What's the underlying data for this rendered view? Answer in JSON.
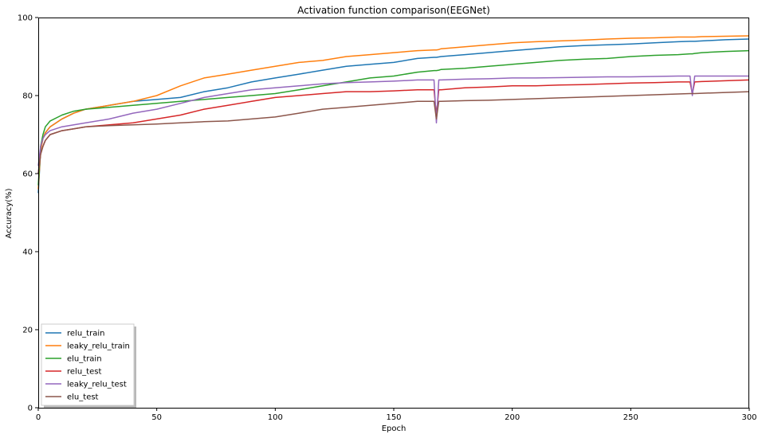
{
  "chart_data": {
    "type": "line",
    "title": "Activation function comparison(EEGNet)",
    "xlabel": "Epoch",
    "ylabel": "Accuracy(%)",
    "xlim": [
      0,
      300
    ],
    "ylim": [
      0,
      100
    ],
    "xticks": [
      0,
      50,
      100,
      150,
      200,
      250,
      300
    ],
    "yticks": [
      0,
      20,
      40,
      60,
      80,
      100
    ],
    "grid": false,
    "legend_position": "lower-left",
    "x": [
      0,
      1,
      2,
      3,
      5,
      10,
      15,
      20,
      30,
      40,
      50,
      60,
      70,
      80,
      90,
      100,
      110,
      120,
      130,
      140,
      150,
      160,
      167,
      168,
      169,
      170,
      180,
      190,
      200,
      210,
      220,
      230,
      240,
      250,
      260,
      270,
      275,
      276,
      277,
      280,
      290,
      300
    ],
    "series": [
      {
        "name": "relu_train",
        "color": "#1f77b4",
        "values": [
          55,
          66,
          69,
          70.5,
          72,
          74,
          75.5,
          76.5,
          77.5,
          78.5,
          79,
          79.5,
          81,
          82,
          83.5,
          84.5,
          85.5,
          86.5,
          87.5,
          88,
          88.5,
          89.5,
          89.8,
          89.8,
          89.9,
          90,
          90.5,
          91,
          91.5,
          92,
          92.5,
          92.8,
          93,
          93.2,
          93.5,
          93.8,
          93.9,
          93.9,
          93.9,
          94,
          94.3,
          94.5
        ]
      },
      {
        "name": "leaky_relu_train",
        "color": "#ff7f0e",
        "values": [
          56,
          66,
          69,
          70.5,
          72,
          74,
          75.5,
          76.5,
          77.5,
          78.5,
          80,
          82.5,
          84.5,
          85.5,
          86.5,
          87.5,
          88.5,
          89,
          90,
          90.5,
          91,
          91.5,
          91.7,
          91.7,
          91.8,
          92,
          92.5,
          93,
          93.5,
          93.8,
          94,
          94.2,
          94.5,
          94.7,
          94.8,
          95,
          95,
          95,
          95,
          95.1,
          95.2,
          95.3
        ]
      },
      {
        "name": "elu_train",
        "color": "#2ca02c",
        "values": [
          57,
          67,
          70,
          72,
          73.5,
          75,
          76,
          76.5,
          77,
          77.5,
          78,
          78.5,
          79,
          79.5,
          80,
          80.5,
          81.5,
          82.5,
          83.5,
          84.5,
          85,
          86,
          86.4,
          86.4,
          86.5,
          86.7,
          87,
          87.5,
          88,
          88.5,
          89,
          89.3,
          89.5,
          90,
          90.3,
          90.5,
          90.7,
          90.7,
          90.8,
          91,
          91.3,
          91.5
        ]
      },
      {
        "name": "relu_test",
        "color": "#d62728",
        "values": [
          60,
          65,
          67,
          68.5,
          70,
          71,
          71.5,
          72,
          72.5,
          73,
          74,
          75,
          76.5,
          77.5,
          78.5,
          79.5,
          80,
          80.5,
          81,
          81,
          81.2,
          81.5,
          81.5,
          75,
          81.5,
          81.5,
          82,
          82.2,
          82.5,
          82.5,
          82.7,
          82.8,
          83,
          83.2,
          83.3,
          83.5,
          83.5,
          80.5,
          83.5,
          83.6,
          83.8,
          84
        ]
      },
      {
        "name": "leaky_relu_test",
        "color": "#9467bd",
        "values": [
          62,
          67,
          69,
          70,
          71,
          72,
          72.5,
          73,
          74,
          75.5,
          76.5,
          78,
          79.5,
          80.5,
          81.5,
          82,
          82.5,
          83,
          83.3,
          83.5,
          83.7,
          84,
          84,
          73,
          84,
          84,
          84.2,
          84.3,
          84.5,
          84.5,
          84.6,
          84.7,
          84.8,
          84.8,
          84.9,
          85,
          85,
          80,
          85,
          85,
          85,
          85
        ]
      },
      {
        "name": "elu_test",
        "color": "#8c564b",
        "values": [
          60,
          65,
          67,
          68.5,
          70,
          71,
          71.5,
          72,
          72.3,
          72.5,
          72.7,
          73,
          73.3,
          73.5,
          74,
          74.5,
          75.5,
          76.5,
          77,
          77.5,
          78,
          78.5,
          78.5,
          74,
          78.5,
          78.5,
          78.7,
          78.8,
          79,
          79.2,
          79.4,
          79.6,
          79.8,
          80,
          80.2,
          80.4,
          80.5,
          80.5,
          80.5,
          80.6,
          80.8,
          81
        ]
      }
    ]
  }
}
